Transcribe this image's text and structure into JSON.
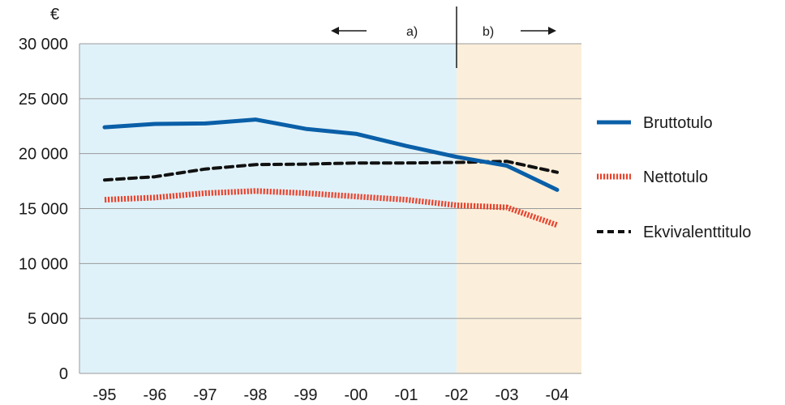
{
  "chart_data": {
    "type": "line",
    "ylabel": "€",
    "categories": [
      "-95",
      "-96",
      "-97",
      "-98",
      "-99",
      "-00",
      "-01",
      "-02",
      "-03",
      "-04"
    ],
    "ylim": [
      0,
      30000
    ],
    "yticks": [
      {
        "value": 0,
        "label": "0"
      },
      {
        "value": 5000,
        "label": "5 000"
      },
      {
        "value": 10000,
        "label": "10 000"
      },
      {
        "value": 15000,
        "label": "15 000"
      },
      {
        "value": 20000,
        "label": "20 000"
      },
      {
        "value": 25000,
        "label": "25 000"
      },
      {
        "value": 30000,
        "label": "30 000"
      }
    ],
    "grid": true,
    "legend_position": "right",
    "regions": [
      {
        "label": "a)",
        "from": "-95",
        "to": "-02",
        "color": "#e0f2f9",
        "arrow": "left"
      },
      {
        "label": "b)",
        "from": "-02",
        "to": "-04",
        "color": "#fbefdb",
        "arrow": "right"
      }
    ],
    "series": [
      {
        "name": "Bruttotulo",
        "color": "#0a5fa8",
        "style": "solid",
        "values": [
          22400,
          22700,
          22750,
          23100,
          22250,
          21800,
          20700,
          19700,
          18900,
          16700
        ]
      },
      {
        "name": "Nettotulo",
        "color": "#e8442e",
        "style": "dotted",
        "values": [
          15800,
          16000,
          16400,
          16600,
          16400,
          16100,
          15800,
          15300,
          15100,
          13500
        ]
      },
      {
        "name": "Ekvivalenttitulo",
        "color": "#111111",
        "style": "dashed",
        "values": [
          17600,
          17900,
          18600,
          19000,
          19050,
          19150,
          19150,
          19200,
          19300,
          18300
        ]
      }
    ]
  }
}
